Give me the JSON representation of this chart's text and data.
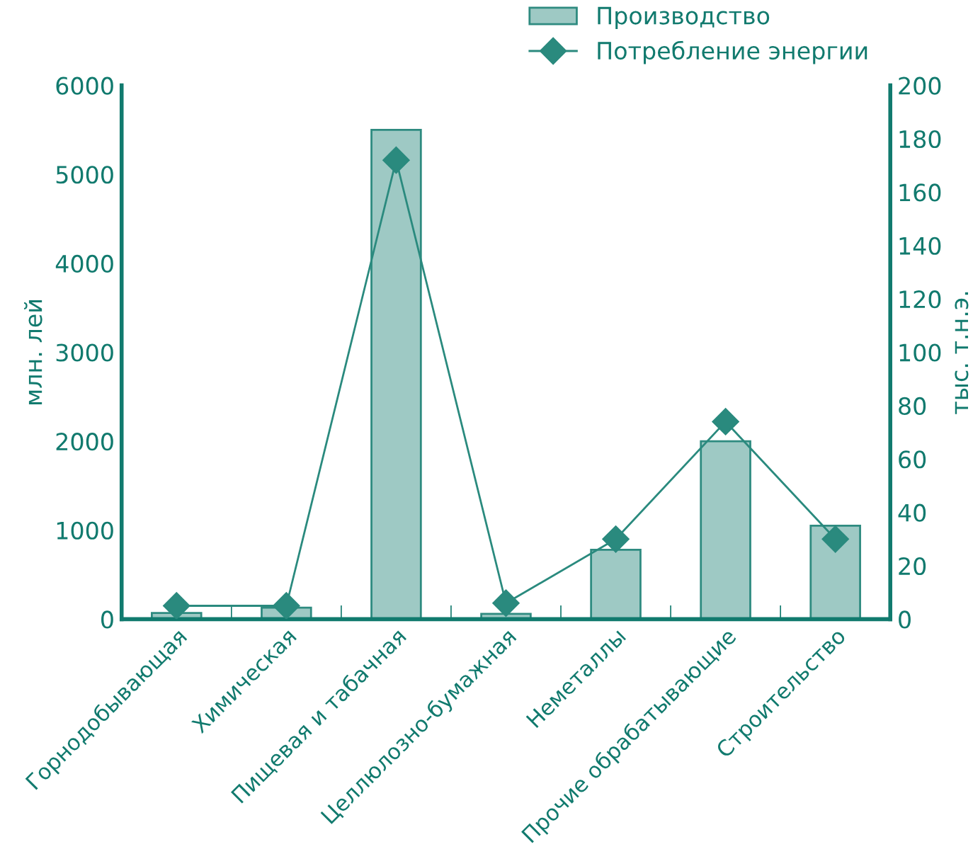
{
  "chart_data": {
    "type": "bar",
    "categories": [
      "Горнодобывающая",
      "Химическая",
      "Пищевая и табачная",
      "Целлюлозно-бумажная",
      "Неметаллы",
      "Прочие обрабатывающие",
      "Строительство"
    ],
    "series": [
      {
        "name": "Производство",
        "color": "#9ec9c4",
        "values": [
          70,
          130,
          5500,
          60,
          780,
          2000,
          1050
        ]
      },
      {
        "name": "Потребление энергии",
        "type": "line",
        "axis": "y2",
        "color": "#2a8a7e",
        "marker": "diamond",
        "values": [
          5,
          5,
          172,
          6,
          30,
          74,
          30
        ]
      }
    ],
    "ylabel": "млн. лей",
    "y2label": "тыс. т.н.э.",
    "ylim": [
      0,
      6000
    ],
    "yticks": [
      0,
      1000,
      2000,
      3000,
      4000,
      5000,
      6000
    ],
    "y2lim": [
      0,
      200
    ],
    "y2ticks": [
      0,
      20,
      40,
      60,
      80,
      100,
      120,
      140,
      160,
      180,
      200
    ],
    "grid": false,
    "legend": "top right"
  }
}
